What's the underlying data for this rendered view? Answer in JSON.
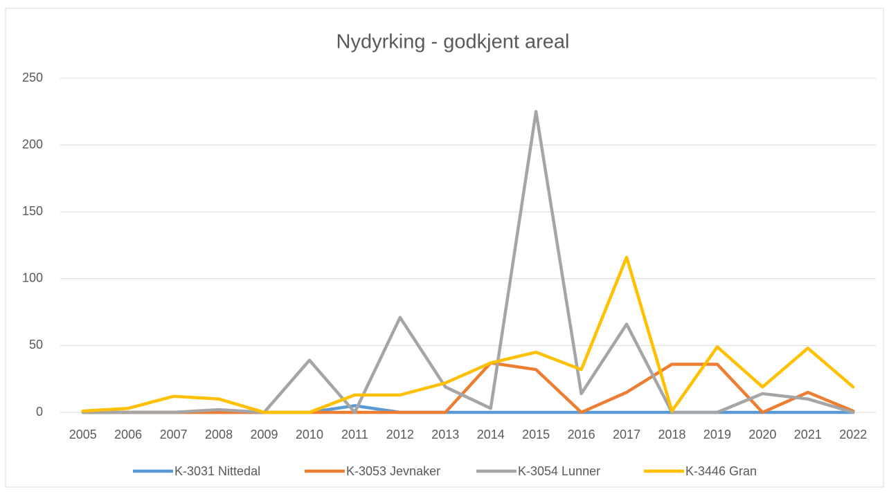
{
  "chart_data": {
    "type": "line",
    "title": "Nydyrking - godkjent areal",
    "categories": [
      "2005",
      "2006",
      "2007",
      "2008",
      "2009",
      "2010",
      "2011",
      "2012",
      "2013",
      "2014",
      "2015",
      "2016",
      "2017",
      "2018",
      "2019",
      "2020",
      "2021",
      "2022"
    ],
    "series": [
      {
        "name": "K-3031 Nittedal",
        "color": "#5b9bd5",
        "values": [
          0,
          0,
          0,
          0,
          0,
          0,
          5,
          0,
          0,
          0,
          0,
          0,
          0,
          0,
          0,
          0,
          0,
          0
        ]
      },
      {
        "name": "K-3053 Jevnaker",
        "color": "#ed7d31",
        "values": [
          0,
          0,
          0,
          0,
          0,
          0,
          0,
          0,
          0,
          37,
          32,
          0,
          15,
          36,
          36,
          0,
          15,
          1
        ]
      },
      {
        "name": "K-3054 Lunner",
        "color": "#a5a5a5",
        "values": [
          0,
          0,
          0,
          2,
          0,
          39,
          0,
          71,
          19,
          3,
          225,
          14,
          66,
          0,
          0,
          14,
          10,
          0
        ]
      },
      {
        "name": "K-3446 Gran",
        "color": "#ffc000",
        "values": [
          1,
          3,
          12,
          10,
          0,
          0,
          13,
          13,
          22,
          37,
          45,
          32,
          116,
          1,
          49,
          19,
          48,
          19
        ]
      }
    ],
    "ylim": [
      0,
      250
    ],
    "yticks": [
      0,
      50,
      100,
      150,
      200,
      250
    ],
    "grid": true,
    "legend": "bottom"
  }
}
